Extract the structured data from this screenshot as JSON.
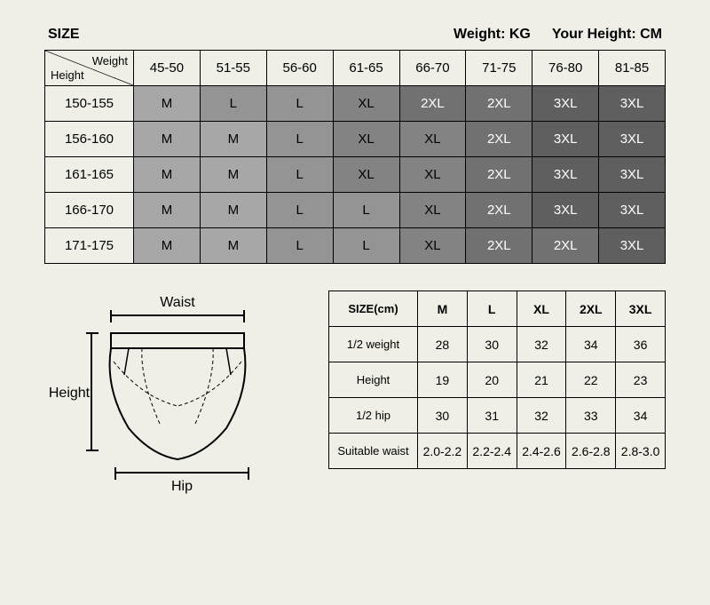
{
  "header": {
    "size_label": "SIZE",
    "weight_label": "Weight: KG",
    "height_label": "Your Height: CM"
  },
  "main_table": {
    "diag_top": "Weight",
    "diag_bottom": "Height",
    "weight_cols": [
      "45-50",
      "51-55",
      "56-60",
      "61-65",
      "66-70",
      "71-75",
      "76-80",
      "81-85"
    ],
    "height_rows": [
      "150-155",
      "156-160",
      "161-165",
      "166-170",
      "171-175"
    ],
    "cells": [
      [
        "M",
        "L",
        "L",
        "XL",
        "2XL",
        "2XL",
        "3XL",
        "3XL"
      ],
      [
        "M",
        "M",
        "L",
        "XL",
        "XL",
        "2XL",
        "3XL",
        "3XL"
      ],
      [
        "M",
        "M",
        "L",
        "XL",
        "XL",
        "2XL",
        "3XL",
        "3XL"
      ],
      [
        "M",
        "M",
        "L",
        "L",
        "XL",
        "2XL",
        "3XL",
        "3XL"
      ],
      [
        "M",
        "M",
        "L",
        "L",
        "XL",
        "2XL",
        "2XL",
        "3XL"
      ]
    ],
    "size_colors": {
      "M": "#a7a7a7",
      "L": "#949494",
      "XL": "#838383",
      "2XL": "#717171",
      "3XL": "#5f5f5f"
    },
    "text_light": "#ffffff",
    "text_dark": "#000000"
  },
  "diagram": {
    "waist_label": "Waist",
    "height_label": "Height",
    "hip_label": "Hip"
  },
  "meas_table": {
    "header": "SIZE(cm)",
    "sizes": [
      "M",
      "L",
      "XL",
      "2XL",
      "3XL"
    ],
    "rows": [
      {
        "label": "1/2 weight",
        "vals": [
          "28",
          "30",
          "32",
          "34",
          "36"
        ]
      },
      {
        "label": "Height",
        "vals": [
          "19",
          "20",
          "21",
          "22",
          "23"
        ]
      },
      {
        "label": "1/2 hip",
        "vals": [
          "30",
          "31",
          "32",
          "33",
          "34"
        ]
      },
      {
        "label": "Suitable waist",
        "vals": [
          "2.0-2.2",
          "2.2-2.4",
          "2.4-2.6",
          "2.6-2.8",
          "2.8-3.0"
        ]
      }
    ]
  }
}
